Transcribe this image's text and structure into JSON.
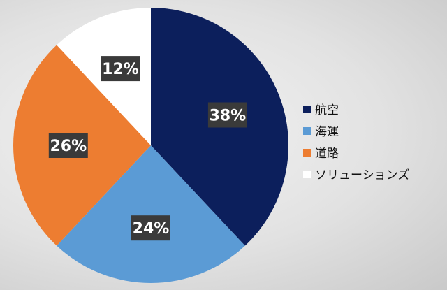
{
  "chart_data": {
    "type": "pie",
    "title": "",
    "start_angle_deg": 0,
    "direction": "clockwise",
    "slices": [
      {
        "label": "航空",
        "value": 38,
        "display": "38%",
        "color": "#0c1f5c"
      },
      {
        "label": "海運",
        "value": 24,
        "display": "24%",
        "color": "#5b9bd5"
      },
      {
        "label": "道路",
        "value": 26,
        "display": "26%",
        "color": "#ed7d31"
      },
      {
        "label": "ソリューションズ",
        "value": 12,
        "display": "12%",
        "color": "#ffffff"
      }
    ],
    "legend": {
      "position": "right"
    }
  }
}
